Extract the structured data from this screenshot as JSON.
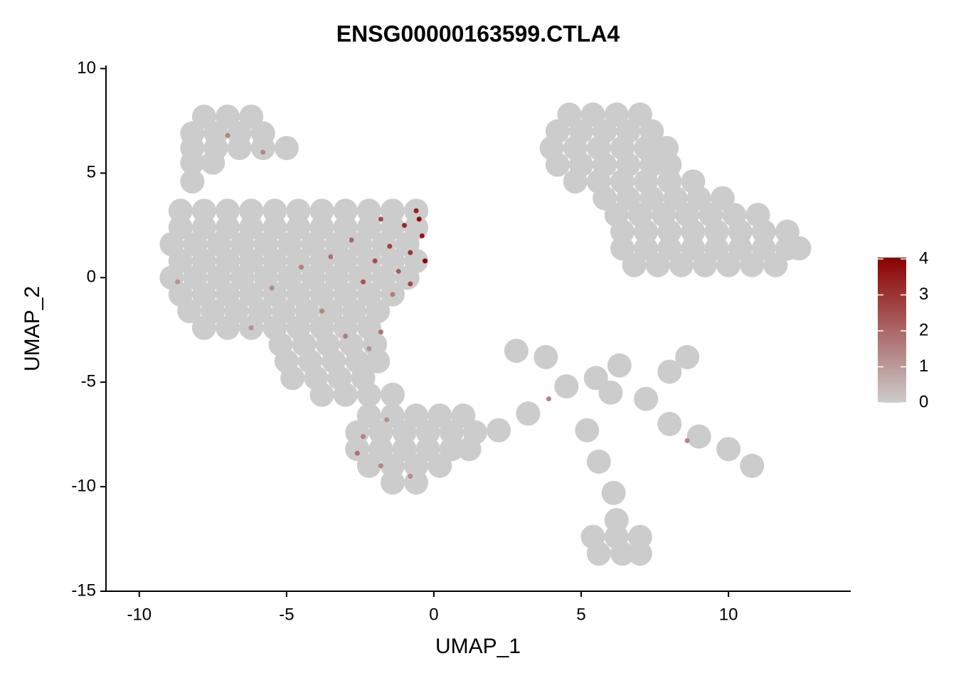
{
  "chart_data": {
    "type": "scatter",
    "title": "ENSG00000163599.CTLA4",
    "x_label": "UMAP_1",
    "y_label": "UMAP_2",
    "xlim": [
      -11.13,
      14.15
    ],
    "ylim": [
      -15,
      10.15
    ],
    "xticks": [
      -10,
      -5,
      0,
      5,
      10
    ],
    "yticks": [
      -15,
      -10,
      -5,
      0,
      5,
      10
    ],
    "colors": [
      "#cccccc",
      "#8b0000"
    ],
    "colorbar_lim": [
      0,
      4
    ],
    "colorbar_ticks": [
      0,
      1,
      2,
      3,
      4
    ],
    "x": [
      -7.8,
      -7.0,
      -6.2,
      -8.2,
      -7.4,
      -6.6,
      -5.8,
      -8.2,
      -7.4,
      -6.6,
      -5.8,
      -5.0,
      -8.2,
      -7.5,
      -8.2,
      -8.6,
      -7.8,
      -7.0,
      -6.2,
      -5.4,
      -4.6,
      -3.8,
      -3.0,
      -2.2,
      -1.4,
      -0.6,
      -8.6,
      -7.8,
      -7.0,
      -6.2,
      -5.4,
      -4.6,
      -3.8,
      -3.0,
      -2.2,
      -1.4,
      -0.6,
      -8.9,
      -8.1,
      -7.3,
      -6.5,
      -5.7,
      -4.9,
      -4.1,
      -3.3,
      -2.5,
      -1.7,
      -0.9,
      -8.6,
      -7.8,
      -7.0,
      -6.2,
      -5.4,
      -4.6,
      -3.8,
      -3.0,
      -2.2,
      -1.4,
      -0.6,
      -8.9,
      -8.1,
      -7.3,
      -6.5,
      -5.7,
      -4.9,
      -4.1,
      -3.3,
      -2.5,
      -1.7,
      -0.9,
      -8.6,
      -7.8,
      -7.0,
      -6.2,
      -5.4,
      -4.6,
      -3.8,
      -3.0,
      -2.2,
      -1.4,
      -8.3,
      -7.5,
      -6.7,
      -5.9,
      -5.1,
      -4.3,
      -3.5,
      -2.7,
      -1.9,
      -7.8,
      -7.0,
      -6.2,
      -5.4,
      -4.6,
      -3.8,
      -3.0,
      -2.2,
      -5.2,
      -4.4,
      -3.6,
      -2.8,
      -2.0,
      -5.0,
      -4.2,
      -3.4,
      -2.6,
      -1.9,
      -4.8,
      -4.0,
      -3.2,
      -2.4,
      -3.8,
      -3.0,
      -2.2,
      -1.4,
      -2.2,
      -1.4,
      -0.6,
      0.2,
      1.0,
      -2.6,
      -1.8,
      -1.0,
      -0.2,
      0.6,
      1.4,
      -2.6,
      -1.8,
      -1.0,
      -0.2,
      0.6,
      1.2,
      -2.2,
      -1.4,
      -0.6,
      0.2,
      -1.4,
      -0.6,
      4.6,
      5.4,
      6.2,
      7.0,
      4.2,
      5.0,
      5.8,
      6.6,
      7.4,
      4.0,
      4.8,
      5.6,
      6.4,
      7.2,
      7.9,
      4.2,
      5.0,
      5.8,
      6.6,
      7.4,
      8.0,
      4.8,
      5.6,
      6.4,
      7.2,
      8.0,
      8.8,
      5.8,
      6.6,
      7.4,
      8.2,
      9.0,
      9.8,
      6.2,
      7.0,
      7.8,
      8.6,
      9.4,
      10.2,
      11.0,
      6.4,
      7.2,
      8.0,
      8.8,
      9.6,
      10.4,
      11.2,
      12.0,
      6.4,
      7.2,
      8.0,
      8.8,
      9.6,
      10.4,
      11.2,
      12.0,
      12.4,
      6.8,
      7.6,
      8.4,
      9.2,
      10.0,
      10.8,
      11.6,
      6.2,
      5.4,
      6.2,
      7.0,
      5.6,
      6.4,
      7.0,
      2.8,
      3.8,
      4.5,
      3.2,
      2.2,
      5.5,
      6.0,
      6.3,
      7.2,
      8.0,
      8.6,
      8.0,
      9.0,
      10.0,
      10.8,
      5.6,
      6.1,
      5.2,
      -1.0,
      -0.5,
      -0.4,
      -1.5,
      -2.0,
      -0.8,
      -1.2,
      -2.8,
      -3.5,
      -2.4,
      -1.4,
      -0.8,
      -4.5,
      -5.5,
      -6.2,
      -3.8,
      -3.0,
      -2.2,
      -1.8,
      -7.0,
      -5.8,
      -8.7,
      -2.6,
      -2.4,
      -1.8,
      -0.8,
      -1.6,
      3.9,
      8.6,
      -0.6,
      -1.8,
      -0.3
    ],
    "y": [
      7.7,
      7.7,
      7.7,
      6.9,
      6.9,
      6.9,
      6.9,
      6.2,
      6.2,
      6.2,
      6.2,
      6.2,
      5.5,
      5.5,
      4.6,
      3.2,
      3.2,
      3.2,
      3.2,
      3.2,
      3.2,
      3.2,
      3.2,
      3.2,
      3.2,
      3.2,
      2.4,
      2.4,
      2.4,
      2.4,
      2.4,
      2.4,
      2.4,
      2.4,
      2.4,
      2.4,
      2.4,
      1.6,
      1.6,
      1.6,
      1.6,
      1.6,
      1.6,
      1.6,
      1.6,
      1.6,
      1.6,
      1.6,
      0.8,
      0.8,
      0.8,
      0.8,
      0.8,
      0.8,
      0.8,
      0.8,
      0.8,
      0.8,
      0.8,
      0,
      0,
      0,
      0,
      0,
      0,
      0,
      0,
      0,
      0,
      0,
      -0.8,
      -0.8,
      -0.8,
      -0.8,
      -0.8,
      -0.8,
      -0.8,
      -0.8,
      -0.8,
      -0.8,
      -1.6,
      -1.6,
      -1.6,
      -1.6,
      -1.6,
      -1.6,
      -1.6,
      -1.6,
      -1.6,
      -2.4,
      -2.4,
      -2.4,
      -2.4,
      -2.4,
      -2.4,
      -2.4,
      -2.4,
      -3.2,
      -3.2,
      -3.2,
      -3.2,
      -3.2,
      -4,
      -4,
      -4,
      -4,
      -4,
      -4.8,
      -4.8,
      -4.8,
      -4.8,
      -5.6,
      -5.6,
      -5.6,
      -5.6,
      -6.6,
      -6.6,
      -6.6,
      -6.6,
      -6.6,
      -7.4,
      -7.4,
      -7.4,
      -7.4,
      -7.4,
      -7.4,
      -8.2,
      -8.2,
      -8.2,
      -8.2,
      -8.2,
      -8.2,
      -9,
      -9,
      -9,
      -9,
      -9.8,
      -9.8,
      7.8,
      7.8,
      7.8,
      7.8,
      7,
      7,
      7,
      7,
      7,
      6.2,
      6.2,
      6.2,
      6.2,
      6.2,
      6.2,
      5.4,
      5.4,
      5.4,
      5.4,
      5.4,
      5.4,
      4.6,
      4.6,
      4.6,
      4.6,
      4.6,
      4.6,
      3.8,
      3.8,
      3.8,
      3.8,
      3.8,
      3.8,
      3,
      3,
      3,
      3,
      3,
      3,
      3,
      2.2,
      2.2,
      2.2,
      2.2,
      2.2,
      2.2,
      2.2,
      2.2,
      1.4,
      1.4,
      1.4,
      1.4,
      1.4,
      1.4,
      1.4,
      1.4,
      1.4,
      0.6,
      0.6,
      0.6,
      0.6,
      0.6,
      0.6,
      0.6,
      -11.6,
      -12.4,
      -12.4,
      -12.4,
      -13.2,
      -13.2,
      -13.2,
      -3.5,
      -3.8,
      -5.2,
      -6.5,
      -7.3,
      -4.8,
      -5.5,
      -4.2,
      -5.8,
      -4.5,
      -3.8,
      -7.0,
      -7.6,
      -8.2,
      -9.0,
      -8.8,
      -10.3,
      -7.3,
      2.5,
      2.8,
      2.0,
      1.5,
      0.8,
      1.2,
      0.3,
      1.8,
      1.0,
      -0.2,
      -0.8,
      -0.3,
      0.5,
      -0.5,
      -2.4,
      -1.6,
      -2.8,
      -3.4,
      -2.6,
      6.8,
      6.0,
      -0.2,
      -8.4,
      -7.6,
      -9.0,
      -9.5,
      -6.8,
      -5.8,
      -7.8,
      3.2,
      2.8,
      0.8
    ],
    "values": [
      0,
      0,
      0,
      0,
      0,
      0,
      0,
      0,
      0,
      0,
      0,
      0,
      0,
      0,
      0,
      0,
      0,
      0,
      0,
      0,
      0,
      0,
      0,
      0,
      0,
      0,
      0,
      0,
      0,
      0,
      0,
      0,
      0,
      0,
      0,
      0,
      0,
      0,
      0,
      0,
      0,
      0,
      0,
      0,
      0,
      0,
      0,
      0,
      0,
      0,
      0,
      0,
      0,
      0,
      0,
      0,
      0,
      0,
      0,
      0,
      0,
      0,
      0,
      0,
      0,
      0,
      0,
      0,
      0,
      0,
      0,
      0,
      0,
      0,
      0,
      0,
      0,
      0,
      0,
      0,
      0,
      0,
      0,
      0,
      0,
      0,
      0,
      0,
      0,
      0,
      0,
      0,
      0,
      0,
      0,
      0,
      0,
      0,
      0,
      0,
      0,
      0,
      0,
      0,
      0,
      0,
      0,
      0,
      0,
      0,
      0,
      0,
      0,
      0,
      0,
      0,
      0,
      0,
      0,
      0,
      0,
      0,
      0,
      0,
      0,
      0,
      0,
      0,
      0,
      0,
      0,
      0,
      0,
      0,
      0,
      0,
      0,
      0,
      0,
      0,
      0,
      0,
      0,
      0,
      0,
      0,
      0,
      0,
      0,
      0,
      0,
      0,
      0,
      0,
      0,
      0,
      0,
      0,
      0,
      0,
      0,
      0,
      0,
      0,
      0,
      0,
      0,
      0,
      0,
      0,
      0,
      0,
      0,
      0,
      0,
      0,
      0,
      0,
      0,
      0,
      0,
      0,
      0,
      0,
      0,
      0,
      0,
      0,
      0,
      0,
      0,
      0,
      0,
      0,
      0,
      0,
      0,
      0,
      0,
      0,
      0,
      0,
      0,
      0,
      0,
      0,
      0,
      0,
      0,
      0,
      0,
      0,
      0,
      0,
      0,
      0,
      0,
      0,
      0,
      0,
      0,
      0,
      0,
      0,
      0,
      0,
      0,
      3.2,
      3.8,
      3.5,
      2.8,
      2.5,
      3.0,
      2.2,
      2.0,
      1.8,
      2.4,
      1.6,
      2.6,
      1.5,
      1.3,
      1.2,
      1.4,
      1.6,
      1.2,
      1.8,
      1.5,
      1.4,
      1.2,
      1.8,
      1.5,
      1.4,
      1.3,
      1.2,
      1.5,
      1.4,
      3.4,
      2.6,
      3.9
    ]
  }
}
